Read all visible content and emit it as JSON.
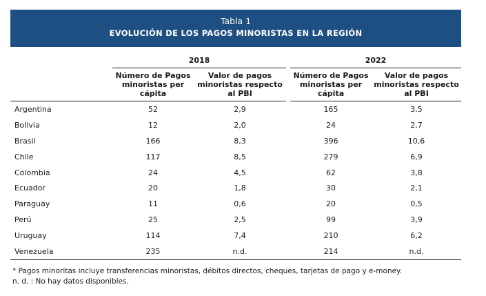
{
  "table": {
    "title": "Tabla 1",
    "subtitle": "EVOLUCIÓN DE LOS PAGOS MINORISTAS EN LA REGIÓN",
    "years": [
      "2018",
      "2022"
    ],
    "column_headers": [
      "Número de  Pagos minoristas per cápita",
      "Valor de pagos minoristas respecto al PBI",
      "Número de  Pagos minoristas per cápita",
      "Valor de pagos minoristas  respecto al PBI"
    ],
    "rows": [
      {
        "country": "Argentina",
        "n2018": "52",
        "v2018": "2,9",
        "n2022": "165",
        "v2022": "3,5"
      },
      {
        "country": "Bolivia",
        "n2018": "12",
        "v2018": "2,0",
        "n2022": "24",
        "v2022": "2,7"
      },
      {
        "country": "Brasil",
        "n2018": "166",
        "v2018": "8,3",
        "n2022": "396",
        "v2022": "10,6"
      },
      {
        "country": "Chile",
        "n2018": "117",
        "v2018": "8,5",
        "n2022": "279",
        "v2022": "6,9"
      },
      {
        "country": "Colombia",
        "n2018": "24",
        "v2018": "4,5",
        "n2022": "62",
        "v2022": "3,8"
      },
      {
        "country": "Ecuador",
        "n2018": "20",
        "v2018": "1,8",
        "n2022": "30",
        "v2022": "2,1"
      },
      {
        "country": "Paraguay",
        "n2018": "11",
        "v2018": "0,6",
        "n2022": "20",
        "v2022": "0,5"
      },
      {
        "country": "Perú",
        "n2018": "25",
        "v2018": "2,5",
        "n2022": "99",
        "v2022": "3,9"
      },
      {
        "country": "Uruguay",
        "n2018": "114",
        "v2018": "7,4",
        "n2022": "210",
        "v2022": "6,2"
      },
      {
        "country": "Venezuela",
        "n2018": "235",
        "v2018": "n.d.",
        "n2022": "214",
        "v2022": "n.d."
      }
    ]
  },
  "notes": [
    "* Pagos minoritas incluye transferencias minoristas, débitos directos, cheques, tarjetas de pago y e-money.",
    "n. d. : No hay datos disponibles."
  ],
  "colors": {
    "header_bg": "#1e4f82",
    "header_text": "#ffffff",
    "rule": "#1a1a1a"
  }
}
